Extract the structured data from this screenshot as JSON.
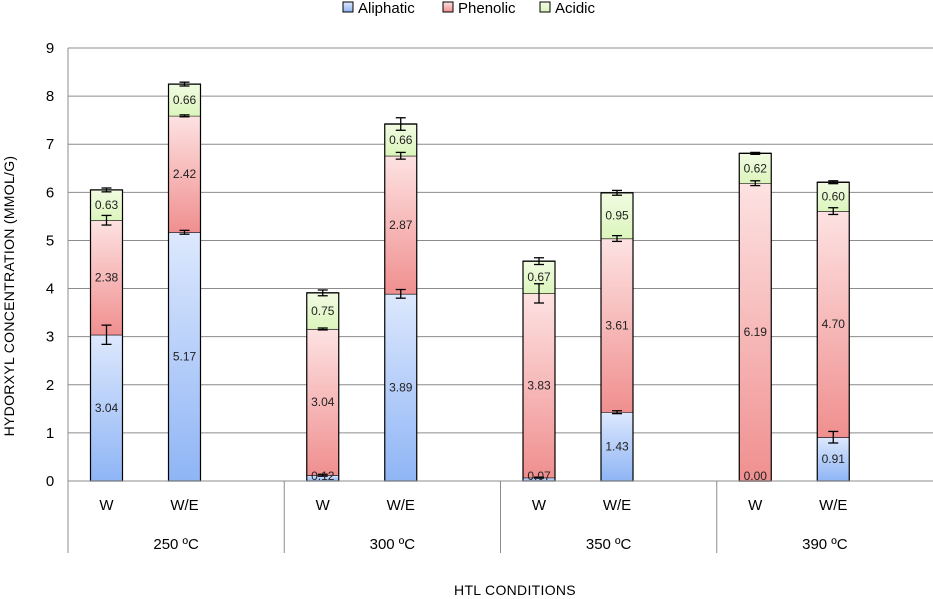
{
  "chart_data": {
    "type": "bar",
    "stacked": true,
    "title": "",
    "xlabel": "HTL CONDITIONS",
    "ylabel": "HYDORXYL CONCENTRATION (MMOL/G)",
    "ylim": [
      0,
      9
    ],
    "yticks": [
      "0",
      "1",
      "2",
      "3",
      "4",
      "5",
      "6",
      "7",
      "8",
      "9"
    ],
    "grid": true,
    "legend_position": "top",
    "groups": [
      {
        "label": "250 ºC",
        "bars": [
          {
            "label": "W",
            "values": [
              3.04,
              2.38,
              0.63
            ],
            "value_labels": [
              "3.04",
              "2.38",
              "0.63"
            ],
            "errors": [
              0.2,
              0.1,
              0.04
            ]
          },
          {
            "label": "W/E",
            "values": [
              5.17,
              2.42,
              0.66
            ],
            "value_labels": [
              "5.17",
              "2.42",
              "0.66"
            ],
            "errors": [
              0.04,
              0.02,
              0.04
            ]
          }
        ]
      },
      {
        "label": "300 ºC",
        "bars": [
          {
            "label": "W",
            "values": [
              0.12,
              3.04,
              0.75
            ],
            "value_labels": [
              "0.12",
              "3.04",
              "0.75"
            ],
            "errors": [
              0.02,
              0.02,
              0.06
            ]
          },
          {
            "label": "W/E",
            "values": [
              3.89,
              2.87,
              0.66
            ],
            "value_labels": [
              "3.89",
              "2.87",
              "0.66"
            ],
            "errors": [
              0.09,
              0.07,
              0.13
            ]
          }
        ]
      },
      {
        "label": "350 ºC",
        "bars": [
          {
            "label": "W",
            "values": [
              0.07,
              3.83,
              0.67
            ],
            "value_labels": [
              "0.07",
              "3.83",
              "0.67"
            ],
            "errors": [
              0.01,
              0.2,
              0.07
            ]
          },
          {
            "label": "W/E",
            "values": [
              1.43,
              3.61,
              0.95
            ],
            "value_labels": [
              "1.43",
              "3.61",
              "0.95"
            ],
            "errors": [
              0.03,
              0.06,
              0.05
            ]
          }
        ]
      },
      {
        "label": "390 ºC",
        "bars": [
          {
            "label": "W",
            "values": [
              0.0,
              6.19,
              0.62
            ],
            "value_labels": [
              "0.00",
              "6.19",
              "0.62"
            ],
            "errors": [
              0.0,
              0.05,
              0.02
            ]
          },
          {
            "label": "W/E",
            "values": [
              0.91,
              4.7,
              0.6
            ],
            "value_labels": [
              "0.91",
              "4.70",
              "0.60"
            ],
            "errors": [
              0.12,
              0.07,
              0.03
            ]
          }
        ]
      }
    ],
    "series": [
      {
        "name": "Aliphatic",
        "color_top": "#dde8fd",
        "color_bottom": "#8fb5f5"
      },
      {
        "name": "Phenolic",
        "color_top": "#fde2e2",
        "color_bottom": "#f08f8f"
      },
      {
        "name": "Acidic",
        "color_top": "#f1fbe2",
        "color_bottom": "#dcf5bc"
      }
    ]
  }
}
